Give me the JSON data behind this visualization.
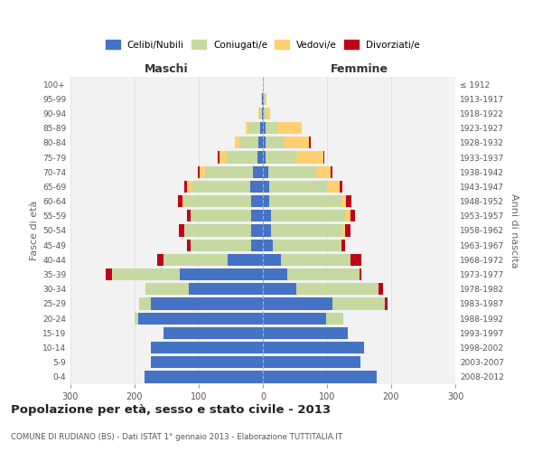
{
  "age_groups": [
    "0-4",
    "5-9",
    "10-14",
    "15-19",
    "20-24",
    "25-29",
    "30-34",
    "35-39",
    "40-44",
    "45-49",
    "50-54",
    "55-59",
    "60-64",
    "65-69",
    "70-74",
    "75-79",
    "80-84",
    "85-89",
    "90-94",
    "95-99",
    "100+"
  ],
  "birth_years": [
    "2008-2012",
    "2003-2007",
    "1998-2002",
    "1993-1997",
    "1988-1992",
    "1983-1987",
    "1978-1982",
    "1973-1977",
    "1968-1972",
    "1963-1967",
    "1958-1962",
    "1953-1957",
    "1948-1952",
    "1943-1947",
    "1938-1942",
    "1933-1937",
    "1928-1932",
    "1923-1927",
    "1918-1922",
    "1913-1917",
    "≤ 1912"
  ],
  "maschi": {
    "celibi": [
      185,
      175,
      175,
      155,
      195,
      175,
      115,
      130,
      55,
      18,
      18,
      18,
      18,
      20,
      15,
      8,
      7,
      4,
      2,
      1,
      0
    ],
    "coniugati": [
      0,
      0,
      0,
      0,
      5,
      18,
      68,
      105,
      100,
      95,
      105,
      95,
      105,
      90,
      75,
      48,
      28,
      18,
      3,
      1,
      0
    ],
    "vedovi": [
      0,
      0,
      0,
      0,
      0,
      0,
      0,
      0,
      0,
      0,
      0,
      0,
      2,
      8,
      8,
      12,
      8,
      5,
      2,
      1,
      0
    ],
    "divorziati": [
      0,
      0,
      0,
      0,
      0,
      0,
      0,
      10,
      10,
      5,
      8,
      5,
      8,
      4,
      4,
      2,
      0,
      0,
      0,
      0,
      0
    ]
  },
  "femmine": {
    "nubili": [
      178,
      152,
      158,
      132,
      98,
      108,
      52,
      38,
      28,
      15,
      12,
      12,
      10,
      10,
      8,
      4,
      4,
      4,
      1,
      1,
      0
    ],
    "coniugate": [
      0,
      0,
      0,
      0,
      28,
      82,
      128,
      112,
      108,
      108,
      112,
      118,
      112,
      90,
      75,
      48,
      28,
      18,
      5,
      2,
      1
    ],
    "vedove": [
      0,
      0,
      0,
      0,
      0,
      0,
      0,
      0,
      0,
      0,
      4,
      6,
      8,
      20,
      22,
      42,
      40,
      38,
      5,
      2,
      0
    ],
    "divorziate": [
      0,
      0,
      0,
      0,
      0,
      4,
      8,
      4,
      18,
      5,
      8,
      8,
      8,
      4,
      4,
      2,
      2,
      0,
      0,
      0,
      0
    ]
  },
  "colors": {
    "celibi": "#4472C4",
    "coniugati": "#C5D9A0",
    "vedovi": "#FFD070",
    "divorziati": "#C0001A"
  },
  "xlim": 300,
  "title": "Popolazione per età, sesso e stato civile - 2013",
  "subtitle": "COMUNE DI RUDIANO (BS) - Dati ISTAT 1° gennaio 2013 - Elaborazione TUTTITALIA.IT",
  "xlabel_left": "Maschi",
  "xlabel_right": "Femmine",
  "ylabel_left": "Fasce di età",
  "ylabel_right": "Anni di nascita",
  "legend_labels": [
    "Celibi/Nubili",
    "Coniugati/e",
    "Vedovi/e",
    "Divorziati/e"
  ],
  "background_color": "#FFFFFF",
  "plot_bg_color": "#F2F2F2",
  "grid_color": "#DDDDDD"
}
